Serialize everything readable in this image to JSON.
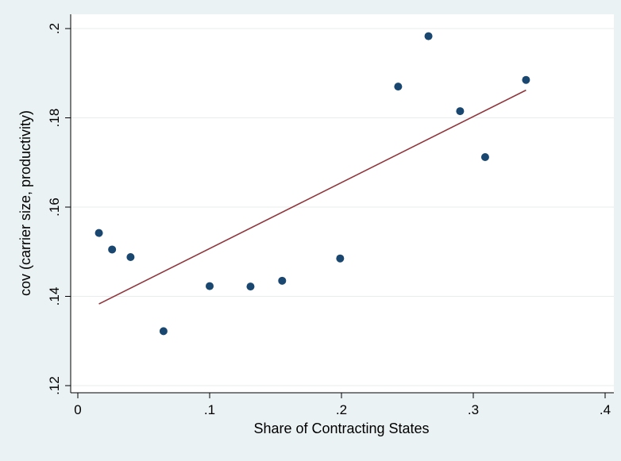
{
  "chart_data": {
    "type": "scatter",
    "title": "",
    "xlabel": "Share of Contracting States",
    "ylabel": "cov (carrier size, productivity)",
    "xlim": [
      0,
      0.4
    ],
    "ylim": [
      0.12,
      0.2
    ],
    "x_ticks": [
      0,
      0.1,
      0.2,
      0.3,
      0.4
    ],
    "x_tick_labels": [
      "0",
      ".1",
      ".2",
      ".3",
      ".4"
    ],
    "y_ticks": [
      0.12,
      0.14,
      0.16,
      0.18,
      0.2
    ],
    "y_tick_labels": [
      ".12",
      ".14",
      ".16",
      ".18",
      ".2"
    ],
    "grid": true,
    "legend": "none",
    "series": [
      {
        "type": "scatter",
        "color": "#1a476f",
        "x": [
          0.016,
          0.026,
          0.04,
          0.065,
          0.1,
          0.131,
          0.155,
          0.199,
          0.243,
          0.266,
          0.29,
          0.309,
          0.34
        ],
        "y": [
          0.1542,
          0.1505,
          0.1488,
          0.1322,
          0.1423,
          0.1422,
          0.1435,
          0.1485,
          0.187,
          0.1983,
          0.1815,
          0.1712,
          0.1885
        ]
      },
      {
        "type": "line",
        "color": "#90353b",
        "x": [
          0.016,
          0.34
        ],
        "y": [
          0.1383,
          0.1862
        ]
      }
    ]
  }
}
